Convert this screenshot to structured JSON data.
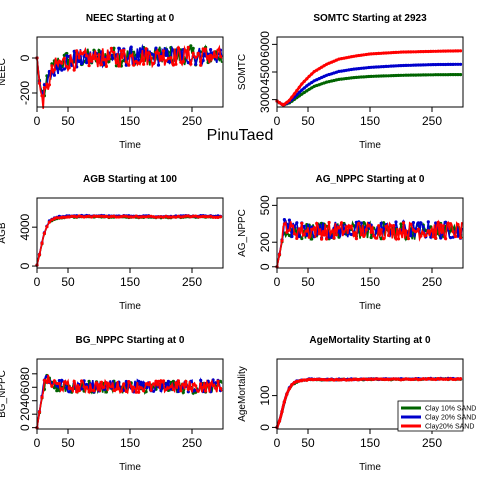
{
  "watermark": "PinuTaed",
  "legend": {
    "entries": [
      {
        "label": "Clay 10% SAND",
        "color": "#006400"
      },
      {
        "label": "Clay 20% SAND",
        "color": "#0000cc"
      },
      {
        "label": "Clay20% SAND",
        "color": "#ff0000"
      }
    ]
  },
  "chart_data": [
    {
      "type": "line",
      "title": "NEEC Starting at  0",
      "xlabel": "Time",
      "ylabel": "NEEC",
      "xlim": [
        0,
        300
      ],
      "ylim": [
        -280,
        120
      ],
      "xticks": [
        0,
        50,
        150,
        250
      ],
      "yticks": [
        -200,
        0
      ],
      "grid": false,
      "series": [
        {
          "name": "Clay 10% SAND",
          "color": "#006400",
          "x": [
            0,
            5,
            10,
            15,
            20,
            30,
            40,
            50,
            75,
            100,
            150,
            200,
            250,
            295
          ],
          "y": [
            0,
            -160,
            -210,
            -170,
            -100,
            -40,
            -20,
            -10,
            0,
            5,
            10,
            10,
            15,
            15
          ]
        },
        {
          "name": "Clay 20% SAND",
          "color": "#0000cc",
          "x": [
            0,
            5,
            10,
            15,
            20,
            30,
            40,
            50,
            75,
            100,
            150,
            200,
            250,
            295
          ],
          "y": [
            0,
            -170,
            -220,
            -180,
            -110,
            -45,
            -25,
            -15,
            0,
            5,
            10,
            12,
            12,
            15
          ]
        },
        {
          "name": "Clay20% SAND",
          "color": "#ff0000",
          "x": [
            0,
            5,
            10,
            15,
            20,
            30,
            40,
            50,
            75,
            100,
            150,
            200,
            250,
            295
          ],
          "y": [
            0,
            -180,
            -240,
            -200,
            -120,
            -50,
            -30,
            -20,
            -5,
            0,
            5,
            10,
            10,
            10
          ]
        }
      ]
    },
    {
      "type": "line",
      "title": "SOMTC Starting at  2923",
      "xlabel": "Time",
      "ylabel": "SOMTC",
      "xlim": [
        0,
        300
      ],
      "ylim": [
        2600,
        6400
      ],
      "xticks": [
        0,
        50,
        150,
        250
      ],
      "yticks": [
        3000,
        4500,
        6000
      ],
      "grid": false,
      "series": [
        {
          "name": "Clay 10% SAND",
          "color": "#006400",
          "x": [
            0,
            10,
            20,
            30,
            40,
            50,
            60,
            80,
            100,
            125,
            150,
            200,
            250,
            295
          ],
          "y": [
            2923,
            2700,
            2820,
            3060,
            3300,
            3520,
            3720,
            3950,
            4100,
            4200,
            4260,
            4320,
            4350,
            4360
          ]
        },
        {
          "name": "Clay 20% SAND",
          "color": "#0000cc",
          "x": [
            0,
            10,
            20,
            30,
            40,
            50,
            60,
            80,
            100,
            125,
            150,
            200,
            250,
            295
          ],
          "y": [
            2923,
            2700,
            2880,
            3200,
            3520,
            3800,
            4020,
            4320,
            4530,
            4660,
            4750,
            4850,
            4900,
            4920
          ]
        },
        {
          "name": "Clay20% SAND",
          "color": "#ff0000",
          "x": [
            0,
            10,
            20,
            30,
            40,
            50,
            60,
            80,
            100,
            125,
            150,
            200,
            250,
            295
          ],
          "y": [
            2923,
            2700,
            2960,
            3400,
            3850,
            4200,
            4520,
            4920,
            5200,
            5360,
            5480,
            5580,
            5620,
            5650
          ]
        }
      ]
    },
    {
      "type": "line",
      "title": "AGB Starting at  100",
      "xlabel": "Time",
      "ylabel": "AGB",
      "xlim": [
        0,
        300
      ],
      "ylim": [
        -200,
        7000
      ],
      "xticks": [
        0,
        50,
        150,
        250
      ],
      "yticks": [
        0,
        4000
      ],
      "grid": false,
      "series": [
        {
          "name": "Clay 10% SAND",
          "color": "#006400",
          "x": [
            0,
            5,
            10,
            15,
            20,
            30,
            40,
            50,
            100,
            150,
            200,
            250,
            295
          ],
          "y": [
            100,
            1400,
            2900,
            3900,
            4500,
            4900,
            5000,
            5050,
            5050,
            5050,
            5000,
            5050,
            5050
          ]
        },
        {
          "name": "Clay 20% SAND",
          "color": "#0000cc",
          "x": [
            0,
            5,
            10,
            15,
            20,
            30,
            40,
            50,
            100,
            150,
            200,
            250,
            295
          ],
          "y": [
            100,
            1500,
            3000,
            4000,
            4600,
            5000,
            5100,
            5150,
            5150,
            5150,
            5100,
            5150,
            5150
          ]
        },
        {
          "name": "Clay20% SAND",
          "color": "#ff0000",
          "x": [
            0,
            5,
            10,
            15,
            20,
            30,
            40,
            50,
            100,
            150,
            200,
            250,
            295
          ],
          "y": [
            100,
            1450,
            2950,
            3950,
            4550,
            4950,
            5050,
            5100,
            5100,
            5100,
            5050,
            5100,
            5050
          ]
        }
      ]
    },
    {
      "type": "line",
      "title": "AG_NPPC Starting at  0",
      "xlabel": "Time",
      "ylabel": "AG_NPPC",
      "xlim": [
        0,
        300
      ],
      "ylim": [
        -10,
        560
      ],
      "xticks": [
        0,
        50,
        150,
        250
      ],
      "yticks": [
        0,
        200,
        500
      ],
      "grid": false,
      "series": [
        {
          "name": "Clay 10% SAND",
          "color": "#006400",
          "x": [
            0,
            5,
            10,
            15,
            20,
            30,
            50,
            100,
            150,
            200,
            250,
            295
          ],
          "y": [
            0,
            120,
            260,
            330,
            300,
            290,
            290,
            290,
            295,
            290,
            290,
            290
          ]
        },
        {
          "name": "Clay 20% SAND",
          "color": "#0000cc",
          "x": [
            0,
            5,
            10,
            15,
            20,
            30,
            50,
            100,
            150,
            200,
            250,
            295
          ],
          "y": [
            0,
            130,
            280,
            400,
            320,
            300,
            300,
            300,
            300,
            300,
            300,
            300
          ]
        },
        {
          "name": "Clay20% SAND",
          "color": "#ff0000",
          "x": [
            0,
            5,
            10,
            15,
            20,
            30,
            50,
            100,
            150,
            200,
            250,
            295
          ],
          "y": [
            0,
            125,
            270,
            360,
            310,
            295,
            295,
            295,
            295,
            295,
            295,
            295
          ]
        }
      ]
    },
    {
      "type": "line",
      "title": "BG_NPPC Starting at  0",
      "xlabel": "Time",
      "ylabel": "BG_NPPC",
      "xlim": [
        0,
        300
      ],
      "ylim": [
        -2,
        102
      ],
      "xticks": [
        0,
        50,
        150,
        250
      ],
      "yticks": [
        0,
        20,
        40,
        60,
        80
      ],
      "grid": false,
      "series": [
        {
          "name": "Clay 10% SAND",
          "color": "#006400",
          "x": [
            0,
            5,
            10,
            15,
            20,
            30,
            50,
            100,
            150,
            200,
            250,
            295
          ],
          "y": [
            0,
            28,
            55,
            70,
            65,
            62,
            60,
            60,
            60,
            60,
            60,
            60
          ]
        },
        {
          "name": "Clay 20% SAND",
          "color": "#0000cc",
          "x": [
            0,
            5,
            10,
            15,
            20,
            30,
            50,
            100,
            150,
            200,
            250,
            295
          ],
          "y": [
            0,
            30,
            58,
            80,
            68,
            64,
            62,
            62,
            62,
            62,
            62,
            62
          ]
        },
        {
          "name": "Clay20% SAND",
          "color": "#ff0000",
          "x": [
            0,
            5,
            10,
            15,
            20,
            30,
            50,
            100,
            150,
            200,
            250,
            295
          ],
          "y": [
            0,
            29,
            56,
            75,
            66,
            63,
            61,
            61,
            61,
            61,
            61,
            61
          ]
        }
      ]
    },
    {
      "type": "line",
      "title": "AgeMortality Starting at  0",
      "xlabel": "Time",
      "ylabel": "AgeMortality",
      "xlim": [
        0,
        300
      ],
      "ylim": [
        -5,
        215
      ],
      "xticks": [
        0,
        50,
        150,
        250
      ],
      "yticks": [
        0,
        100
      ],
      "grid": false,
      "legend_position": "bottom-right",
      "series": [
        {
          "name": "Clay 10% SAND",
          "color": "#006400",
          "x": [
            0,
            5,
            10,
            15,
            20,
            25,
            30,
            40,
            50,
            100,
            150,
            200,
            250,
            295
          ],
          "y": [
            0,
            25,
            65,
            100,
            122,
            135,
            142,
            148,
            150,
            150,
            151,
            151,
            152,
            152
          ]
        },
        {
          "name": "Clay 20% SAND",
          "color": "#0000cc",
          "x": [
            0,
            5,
            10,
            15,
            20,
            25,
            30,
            40,
            50,
            100,
            150,
            200,
            250,
            295
          ],
          "y": [
            0,
            26,
            67,
            102,
            124,
            137,
            144,
            149,
            151,
            151,
            152,
            152,
            153,
            153
          ]
        },
        {
          "name": "Clay20% SAND",
          "color": "#ff0000",
          "x": [
            0,
            5,
            10,
            15,
            20,
            25,
            30,
            40,
            50,
            100,
            150,
            200,
            250,
            295
          ],
          "y": [
            0,
            25,
            66,
            101,
            123,
            136,
            143,
            148,
            150,
            150,
            151,
            151,
            152,
            152
          ]
        }
      ]
    }
  ]
}
